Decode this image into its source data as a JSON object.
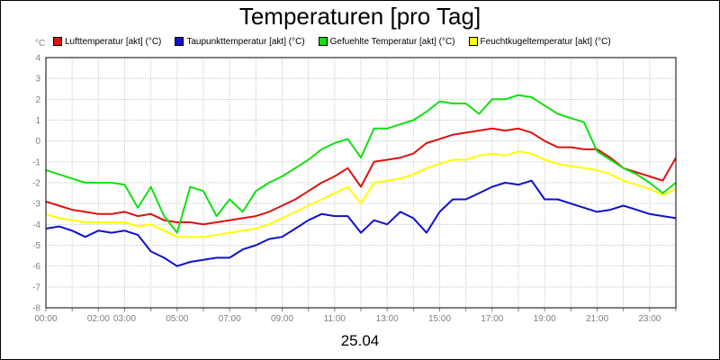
{
  "chart_data": {
    "type": "line",
    "title": "Temperaturen [pro Tag]",
    "ylabel": "°C",
    "xlabel": "",
    "footer": "25.04",
    "ylim": [
      -8,
      4
    ],
    "yticks": [
      4,
      3,
      2,
      1,
      0,
      -1,
      -2,
      -3,
      -4,
      -5,
      -6,
      -7,
      -8
    ],
    "xlim": [
      0,
      24
    ],
    "xticks": [
      {
        "h": 0,
        "label": "00:00"
      },
      {
        "h": 2,
        "label": "02:00"
      },
      {
        "h": 3,
        "label": "03:00"
      },
      {
        "h": 5,
        "label": "05:00"
      },
      {
        "h": 7,
        "label": "07:00"
      },
      {
        "h": 9,
        "label": "09:00"
      },
      {
        "h": 11,
        "label": "11:00"
      },
      {
        "h": 13,
        "label": "13:00"
      },
      {
        "h": 15,
        "label": "15:00"
      },
      {
        "h": 17,
        "label": "17:00"
      },
      {
        "h": 19,
        "label": "19:00"
      },
      {
        "h": 21,
        "label": "21:00"
      },
      {
        "h": 23,
        "label": "23:00"
      }
    ],
    "grid": true,
    "legend_position": "top",
    "series": [
      {
        "name": "Lufttemperatur [akt] (°C)",
        "color": "#e01010",
        "x": [
          0,
          0.5,
          1,
          1.5,
          2,
          2.5,
          3,
          3.5,
          4,
          4.5,
          5,
          5.5,
          6,
          6.5,
          7,
          7.5,
          8,
          8.5,
          9,
          9.5,
          10,
          10.5,
          11,
          11.5,
          12,
          12.5,
          13,
          13.5,
          14,
          14.5,
          15,
          15.5,
          16,
          16.5,
          17,
          17.5,
          18,
          18.5,
          19,
          19.5,
          20,
          20.5,
          21,
          21.5,
          22,
          22.5,
          23,
          23.5,
          24
        ],
        "values": [
          -2.9,
          -3.1,
          -3.3,
          -3.4,
          -3.5,
          -3.5,
          -3.4,
          -3.6,
          -3.5,
          -3.8,
          -3.9,
          -3.9,
          -4.0,
          -3.9,
          -3.8,
          -3.7,
          -3.6,
          -3.4,
          -3.1,
          -2.8,
          -2.4,
          -2.0,
          -1.7,
          -1.3,
          -2.2,
          -1.0,
          -0.9,
          -0.8,
          -0.6,
          -0.1,
          0.1,
          0.3,
          0.4,
          0.5,
          0.6,
          0.5,
          0.6,
          0.4,
          0.0,
          -0.3,
          -0.3,
          -0.4,
          -0.4,
          -0.8,
          -1.3,
          -1.5,
          -1.7,
          -1.9,
          -0.8
        ]
      },
      {
        "name": "Taupunkttemperatur [akt] (°C)",
        "color": "#1010d0",
        "x": [
          0,
          0.5,
          1,
          1.5,
          2,
          2.5,
          3,
          3.5,
          4,
          4.5,
          5,
          5.5,
          6,
          6.5,
          7,
          7.5,
          8,
          8.5,
          9,
          9.5,
          10,
          10.5,
          11,
          11.5,
          12,
          12.5,
          13,
          13.5,
          14,
          14.5,
          15,
          15.5,
          16,
          16.5,
          17,
          17.5,
          18,
          18.5,
          19,
          19.5,
          20,
          20.5,
          21,
          21.5,
          22,
          22.5,
          23,
          23.5,
          24
        ],
        "values": [
          -4.2,
          -4.1,
          -4.3,
          -4.6,
          -4.3,
          -4.4,
          -4.3,
          -4.5,
          -5.3,
          -5.6,
          -6.0,
          -5.8,
          -5.7,
          -5.6,
          -5.6,
          -5.2,
          -5.0,
          -4.7,
          -4.6,
          -4.2,
          -3.8,
          -3.5,
          -3.6,
          -3.6,
          -4.4,
          -3.8,
          -4.0,
          -3.4,
          -3.7,
          -4.4,
          -3.4,
          -2.8,
          -2.8,
          -2.5,
          -2.2,
          -2.0,
          -2.1,
          -1.9,
          -2.8,
          -2.8,
          -3.0,
          -3.2,
          -3.4,
          -3.3,
          -3.1,
          -3.3,
          -3.5,
          -3.6,
          -3.7
        ]
      },
      {
        "name": "Gefuehlte Temperatur [akt] (°C)",
        "color": "#10e010",
        "x": [
          0,
          0.5,
          1,
          1.5,
          2,
          2.5,
          3,
          3.5,
          4,
          4.5,
          5,
          5.5,
          6,
          6.5,
          7,
          7.5,
          8,
          8.5,
          9,
          9.5,
          10,
          10.5,
          11,
          11.5,
          12,
          12.5,
          13,
          13.5,
          14,
          14.5,
          15,
          15.5,
          16,
          16.5,
          17,
          17.5,
          18,
          18.5,
          19,
          19.5,
          20,
          20.5,
          21,
          21.5,
          22,
          22.5,
          23,
          23.5,
          24
        ],
        "values": [
          -1.4,
          -1.6,
          -1.8,
          -2.0,
          -2.0,
          -2.0,
          -2.1,
          -3.2,
          -2.2,
          -3.6,
          -4.4,
          -2.2,
          -2.4,
          -3.6,
          -2.8,
          -3.4,
          -2.4,
          -2.0,
          -1.7,
          -1.3,
          -0.9,
          -0.4,
          -0.1,
          0.1,
          -0.8,
          0.6,
          0.6,
          0.8,
          1.0,
          1.4,
          1.9,
          1.8,
          1.8,
          1.3,
          2.0,
          2.0,
          2.2,
          2.1,
          1.7,
          1.3,
          1.1,
          0.9,
          -0.5,
          -0.9,
          -1.3,
          -1.6,
          -2.0,
          -2.5,
          -2.0
        ]
      },
      {
        "name": "Feuchtkugeltemperatur [akt] (°C)",
        "color": "#ffff00",
        "x": [
          0,
          0.5,
          1,
          1.5,
          2,
          2.5,
          3,
          3.5,
          4,
          4.5,
          5,
          5.5,
          6,
          6.5,
          7,
          7.5,
          8,
          8.5,
          9,
          9.5,
          10,
          10.5,
          11,
          11.5,
          12,
          12.5,
          13,
          13.5,
          14,
          14.5,
          15,
          15.5,
          16,
          16.5,
          17,
          17.5,
          18,
          18.5,
          19,
          19.5,
          20,
          20.5,
          21,
          21.5,
          22,
          22.5,
          23,
          23.5,
          24
        ],
        "values": [
          -3.5,
          -3.7,
          -3.8,
          -3.9,
          -3.9,
          -3.9,
          -3.9,
          -4.1,
          -4.0,
          -4.3,
          -4.6,
          -4.6,
          -4.6,
          -4.5,
          -4.4,
          -4.3,
          -4.2,
          -4.0,
          -3.7,
          -3.4,
          -3.1,
          -2.8,
          -2.5,
          -2.2,
          -3.0,
          -2.0,
          -1.9,
          -1.8,
          -1.6,
          -1.3,
          -1.1,
          -0.9,
          -0.9,
          -0.7,
          -0.6,
          -0.7,
          -0.5,
          -0.6,
          -0.9,
          -1.1,
          -1.2,
          -1.3,
          -1.4,
          -1.6,
          -1.9,
          -2.1,
          -2.3,
          -2.6,
          -2.3
        ]
      }
    ]
  }
}
